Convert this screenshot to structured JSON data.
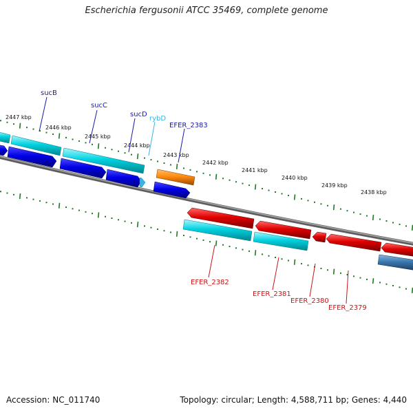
{
  "title": "Escherichia fergusonii ATCC 35469, complete genome",
  "footer": {
    "accession": "Accession: NC_011740",
    "summary": "Topology: circular; Length: 4,588,711 bp; Genes: 4,440"
  },
  "scale_ticks": [
    "2447 kbp",
    "2446 kbp",
    "2445 kbp",
    "2444 kbp",
    "2443 kbp",
    "2442 kbp",
    "2441 kbp",
    "2440 kbp",
    "2439 kbp",
    "2438 kbp"
  ],
  "gene_labels": [
    {
      "text": "sucB",
      "color": "#1a1aa6"
    },
    {
      "text": "sucC",
      "color": "#1a1aa6"
    },
    {
      "text": "sucD",
      "color": "#1a1aa6"
    },
    {
      "text": "rybD",
      "color": "#38b6e0"
    },
    {
      "text": "EFER_2383",
      "color": "#1a1aa6"
    },
    {
      "text": "EFER_2382",
      "color": "#c81414"
    },
    {
      "text": "EFER_2381",
      "color": "#c81414"
    },
    {
      "text": "EFER_2380",
      "color": "#c81414"
    },
    {
      "text": "EFER_2379",
      "color": "#c81414"
    }
  ],
  "colors": {
    "backbone": "#7a7a7a",
    "tick": "#1f7a1f",
    "cds_forward": "#0000e6",
    "gene_forward": "#00d2e0",
    "cds_reverse": "#e00000",
    "gene_reverse": "#00d2e0",
    "ncrna": "#ff8c10",
    "other": "#3a78b0"
  }
}
